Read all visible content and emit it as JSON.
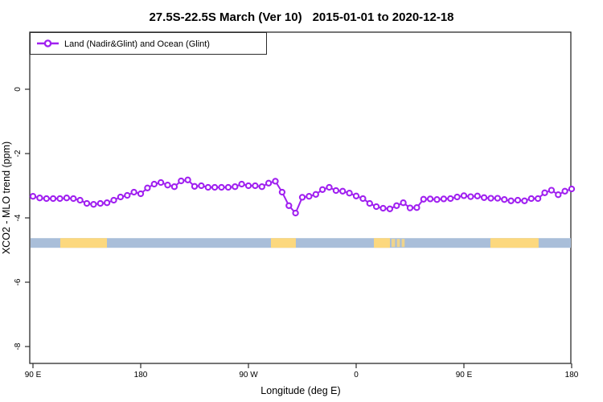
{
  "title": {
    "range": "27.5S-22.5S March (Ver 10)",
    "dates": "2015-01-01 to 2020-12-18"
  },
  "legend": {
    "label": "Land (Nadir&Glint) and Ocean (Glint)"
  },
  "axes": {
    "x_label": "Longitude (deg E)",
    "y_label": "XCO2 - MLO trend (ppm)",
    "x_ticks": [
      {
        "offset_deg": 0,
        "label": "90 E"
      },
      {
        "offset_deg": 90,
        "label": "180"
      },
      {
        "offset_deg": 180,
        "label": "90 W"
      },
      {
        "offset_deg": 270,
        "label": "0"
      },
      {
        "offset_deg": 360,
        "label": "90 E"
      },
      {
        "offset_deg": 450,
        "label": "180"
      }
    ],
    "y_ticks": [
      {
        "value": 0,
        "label": "0"
      },
      {
        "value": -2,
        "label": "-2"
      },
      {
        "value": -4,
        "label": "-4"
      },
      {
        "value": -6,
        "label": "-6"
      },
      {
        "value": -8,
        "label": "-8"
      }
    ]
  },
  "colors": {
    "series": "#A020F0",
    "marker_fill": "#ffffff",
    "band_ocean": "#A9BED9",
    "band_land": "#FCD87E",
    "axis": "#2b2b2b",
    "text": "#000000"
  },
  "chart_data": {
    "type": "line",
    "title": "27.5S-22.5S March (Ver 10)  2015-01-01 to 2020-12-18",
    "xlabel": "Longitude (deg E)",
    "ylabel": "XCO2 - MLO trend (ppm)",
    "x_axis_note": "longitude axis runs eastward from 90E wrapping 450 degrees (90E,180,90W,0,90E,180)",
    "x_range_offset_deg": [
      0,
      450
    ],
    "ylim": [
      -8.5,
      1.8
    ],
    "grid": false,
    "legend_position": "top-left",
    "series_name": "Land (Nadir&Glint) and Ocean (Glint)",
    "x_offset_deg": [
      0,
      5.63,
      11.25,
      16.88,
      22.5,
      28.13,
      33.75,
      39.38,
      45,
      50.63,
      56.25,
      61.88,
      67.5,
      73.13,
      78.75,
      84.38,
      90,
      95.63,
      101.25,
      106.88,
      112.5,
      118.13,
      123.75,
      129.38,
      135,
      140.63,
      146.25,
      151.88,
      157.5,
      163.13,
      168.75,
      174.38,
      180,
      185.63,
      191.25,
      196.88,
      202.5,
      208.13,
      213.75,
      219.38,
      225,
      230.63,
      236.25,
      241.88,
      247.5,
      253.13,
      258.75,
      264.38,
      270,
      275.63,
      281.25,
      286.88,
      292.5,
      298.13,
      303.75,
      309.38,
      315,
      320.63,
      326.25,
      331.88,
      337.5,
      343.13,
      348.75,
      354.38,
      360,
      365.63,
      371.25,
      376.88,
      382.5,
      388.13,
      393.75,
      399.38,
      405,
      410.63,
      416.25,
      421.88,
      427.5,
      433.13,
      438.75,
      444.38,
      450
    ],
    "y_ppm": [
      -3.33,
      -3.38,
      -3.4,
      -3.4,
      -3.4,
      -3.38,
      -3.4,
      -3.45,
      -3.55,
      -3.58,
      -3.55,
      -3.53,
      -3.45,
      -3.35,
      -3.3,
      -3.2,
      -3.25,
      -3.07,
      -2.95,
      -2.9,
      -2.98,
      -3.03,
      -2.85,
      -2.82,
      -3.02,
      -3.0,
      -3.05,
      -3.05,
      -3.05,
      -3.05,
      -3.03,
      -2.95,
      -3.0,
      -3.0,
      -3.03,
      -2.92,
      -2.86,
      -3.2,
      -3.62,
      -3.85,
      -3.36,
      -3.33,
      -3.27,
      -3.12,
      -3.05,
      -3.15,
      -3.17,
      -3.23,
      -3.32,
      -3.4,
      -3.55,
      -3.65,
      -3.7,
      -3.72,
      -3.62,
      -3.53,
      -3.69,
      -3.68,
      -3.42,
      -3.41,
      -3.43,
      -3.41,
      -3.4,
      -3.35,
      -3.31,
      -3.34,
      -3.32,
      -3.37,
      -3.39,
      -3.39,
      -3.43,
      -3.47,
      -3.45,
      -3.47,
      -3.4,
      -3.4,
      -3.22,
      -3.14,
      -3.28,
      -3.17,
      -3.1
    ],
    "band": {
      "description": "land/ocean indicator bar",
      "y_top_ppm": -4.63,
      "y_bottom_ppm": -4.93,
      "ocean_full_span": true,
      "land_segments_offset_deg": [
        [
          22.8,
          61.8
        ],
        [
          198.8,
          219.6
        ],
        [
          284.8,
          298.2
        ],
        [
          382.1,
          422.4
        ]
      ],
      "land_segments_fuzzy_offset_deg": [
        [
          299.5,
          302.5
        ],
        [
          304,
          306.5
        ],
        [
          308,
          310.5
        ]
      ]
    }
  }
}
